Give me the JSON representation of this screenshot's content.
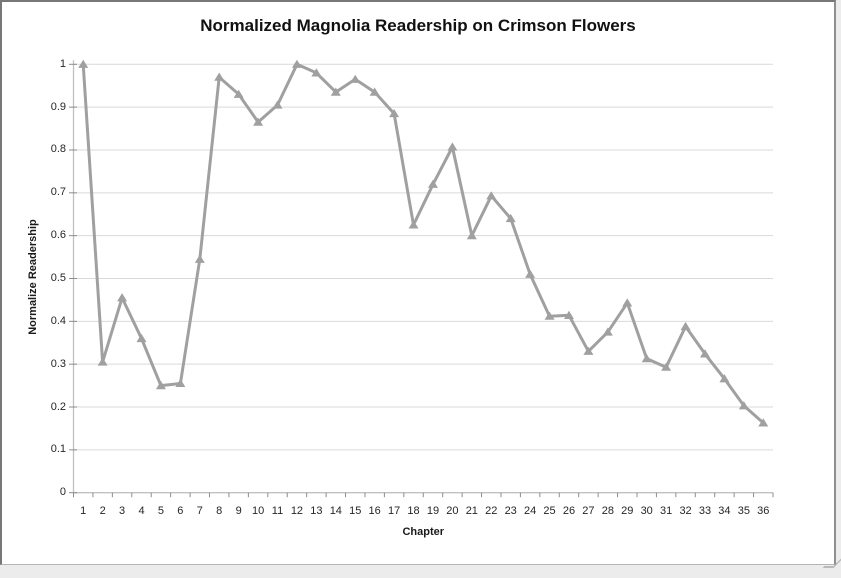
{
  "window": {
    "panel_background": "#ffffff",
    "frame_border_color": "#777777",
    "outer_strip_color": "#ececec"
  },
  "chart_data": {
    "type": "line",
    "title": "Normalized Magnolia Readership on Crimson Flowers",
    "xlabel": "Chapter",
    "ylabel": "Normalize Readership",
    "categories": [
      "1",
      "2",
      "3",
      "4",
      "5",
      "6",
      "7",
      "8",
      "9",
      "10",
      "11",
      "12",
      "13",
      "14",
      "15",
      "16",
      "17",
      "18",
      "19",
      "20",
      "21",
      "22",
      "23",
      "24",
      "25",
      "26",
      "27",
      "28",
      "29",
      "30",
      "31",
      "32",
      "33",
      "34",
      "35",
      "36"
    ],
    "values": [
      1.0,
      0.305,
      0.455,
      0.36,
      0.25,
      0.255,
      0.545,
      0.97,
      0.93,
      0.865,
      0.905,
      1.0,
      0.98,
      0.935,
      0.965,
      0.935,
      0.885,
      0.625,
      0.72,
      0.807,
      0.6,
      0.693,
      0.64,
      0.51,
      0.412,
      0.414,
      0.33,
      0.375,
      0.443,
      0.313,
      0.293,
      0.388,
      0.324,
      0.266,
      0.203,
      0.163
    ],
    "ylim": [
      0,
      1
    ],
    "ytick_labels_bottom_up": [
      "0",
      "0.1",
      "0.2",
      "0.3",
      "0.4",
      "0.5",
      "0.6",
      "0.7",
      "0.8",
      "0.9",
      "1"
    ],
    "grid": true,
    "legend": "none",
    "marker": "triangle-up",
    "series_color": "#a0a0a0",
    "gridline_color": "#d9d9d9",
    "axis_color": "#c0c0c0",
    "tick_color": "#8c8c8c",
    "text_color": "#262626"
  }
}
